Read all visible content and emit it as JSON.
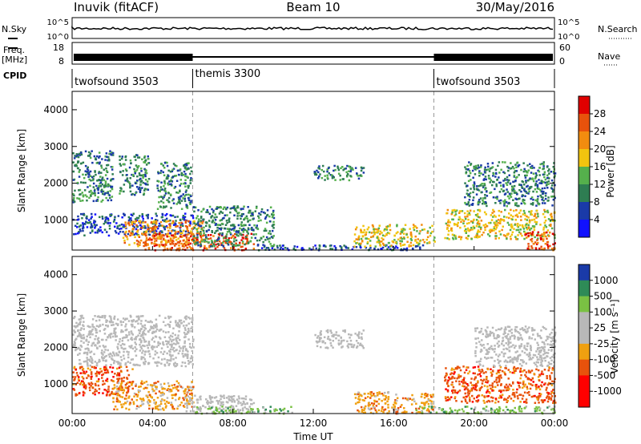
{
  "header": {
    "station": "Inuvik (fitACF)",
    "beam": "Beam 10",
    "date": "30/May/2016"
  },
  "colors": {
    "power_scale": [
      "#1111ff",
      "#1a3aa8",
      "#2e7d52",
      "#55b04c",
      "#f1c40f",
      "#f28c0f",
      "#e8520c",
      "#e00000"
    ],
    "velocity_scale": [
      "#ff0000",
      "#e8520c",
      "#f0a010",
      "#b8b8b8",
      "#b8b8b8",
      "#7ac143",
      "#2e8b57",
      "#1a3aa8"
    ],
    "ground_scatter": "#b8b8b8"
  },
  "top_panels": {
    "nsky": {
      "label": "N.Sky",
      "ticks_left": [
        "10^5",
        "10^0"
      ],
      "right_label": "N.Search",
      "ticks_right": [
        "10^5",
        "10^0"
      ]
    },
    "freq": {
      "label_line1": "Freq.",
      "label_line2": "[MHz]",
      "ticks_left": [
        "18",
        "8"
      ],
      "right_label": "Nave",
      "ticks_right": [
        "60",
        "0"
      ]
    },
    "cpid": {
      "label": "CPID",
      "segments": [
        {
          "name": "twofsound 3503",
          "start_hour": 0,
          "end_hour": 6
        },
        {
          "name": "themis 3300",
          "start_hour": 6,
          "end_hour": 18
        },
        {
          "name": "twofsound 3503",
          "start_hour": 18,
          "end_hour": 24
        }
      ]
    }
  },
  "chart_data": [
    {
      "type": "heatmap",
      "title": "",
      "quantity": "Power",
      "xlabel": "",
      "ylabel": "Slant Range [km]",
      "x_range_hours": [
        0,
        24
      ],
      "ylim": [
        180,
        4500
      ],
      "yticks": [
        "1000",
        "2000",
        "3000",
        "4000"
      ],
      "colorbar_label": "Power [dB]",
      "colorbar_ticks": [
        "4",
        "8",
        "12",
        "16",
        "20",
        "24",
        "28"
      ],
      "colorbar_range": [
        0,
        32
      ],
      "regions": [
        {
          "t0": 0.0,
          "t1": 2.0,
          "r0": 1500,
          "r1": 2900,
          "value": 12
        },
        {
          "t0": 2.3,
          "t1": 3.8,
          "r0": 1700,
          "r1": 2800,
          "value": 10
        },
        {
          "t0": 4.2,
          "t1": 5.9,
          "r0": 1300,
          "r1": 2600,
          "value": 11
        },
        {
          "t0": 0.0,
          "t1": 6.0,
          "r0": 600,
          "r1": 1200,
          "value": 9
        },
        {
          "t0": 2.5,
          "t1": 6.5,
          "r0": 300,
          "r1": 1000,
          "value": 22
        },
        {
          "t0": 3.5,
          "t1": 9.0,
          "r0": 200,
          "r1": 650,
          "value": 29
        },
        {
          "t0": 6.0,
          "t1": 10.0,
          "r0": 300,
          "r1": 1400,
          "value": 10
        },
        {
          "t0": 9.0,
          "t1": 17.5,
          "r0": 200,
          "r1": 350,
          "value": 7
        },
        {
          "t0": 12.0,
          "t1": 14.5,
          "r0": 2100,
          "r1": 2500,
          "value": 12
        },
        {
          "t0": 14.0,
          "t1": 18.0,
          "r0": 300,
          "r1": 900,
          "value": 18
        },
        {
          "t0": 18.5,
          "t1": 24.0,
          "r0": 500,
          "r1": 1300,
          "value": 19
        },
        {
          "t0": 19.5,
          "t1": 24.0,
          "r0": 1400,
          "r1": 2600,
          "value": 13
        },
        {
          "t0": 22.5,
          "t1": 24.0,
          "r0": 200,
          "r1": 700,
          "value": 26
        }
      ]
    },
    {
      "type": "heatmap",
      "title": "",
      "quantity": "Velocity",
      "xlabel": "Time UT",
      "ylabel": "Slant Range [km]",
      "x_range_hours": [
        0,
        24
      ],
      "xticks": [
        "00:00",
        "04:00",
        "08:00",
        "12:00",
        "16:00",
        "20:00",
        "00:00"
      ],
      "ylim": [
        180,
        4500
      ],
      "yticks": [
        "1000",
        "2000",
        "3000",
        "4000"
      ],
      "colorbar_label": "Velocity [m s⁻¹]",
      "colorbar_ticks": [
        "-1000",
        "-500",
        "-100",
        "-25",
        "25",
        "100",
        "500",
        "1000"
      ],
      "regions": [
        {
          "t0": 0.0,
          "t1": 6.0,
          "r0": 1500,
          "r1": 2900,
          "value": 0
        },
        {
          "t0": 0.0,
          "t1": 3.0,
          "r0": 700,
          "r1": 1500,
          "value": -500
        },
        {
          "t0": 2.0,
          "t1": 6.0,
          "r0": 300,
          "r1": 1100,
          "value": -100
        },
        {
          "t0": 5.5,
          "t1": 9.0,
          "r0": 200,
          "r1": 700,
          "value": 0
        },
        {
          "t0": 6.0,
          "t1": 11.0,
          "r0": 200,
          "r1": 400,
          "value": 100
        },
        {
          "t0": 12.0,
          "t1": 14.5,
          "r0": 2000,
          "r1": 2500,
          "value": 0
        },
        {
          "t0": 14.0,
          "t1": 18.0,
          "r0": 200,
          "r1": 800,
          "value": -100
        },
        {
          "t0": 18.5,
          "t1": 24.0,
          "r0": 500,
          "r1": 1500,
          "value": -500
        },
        {
          "t0": 20.0,
          "t1": 24.0,
          "r0": 1500,
          "r1": 2600,
          "value": 0
        },
        {
          "t0": 17.0,
          "t1": 24.0,
          "r0": 200,
          "r1": 400,
          "value": 100
        }
      ]
    }
  ],
  "x_axis": {
    "label": "Time UT",
    "ticks": [
      "00:00",
      "04:00",
      "08:00",
      "12:00",
      "16:00",
      "20:00",
      "00:00"
    ]
  }
}
